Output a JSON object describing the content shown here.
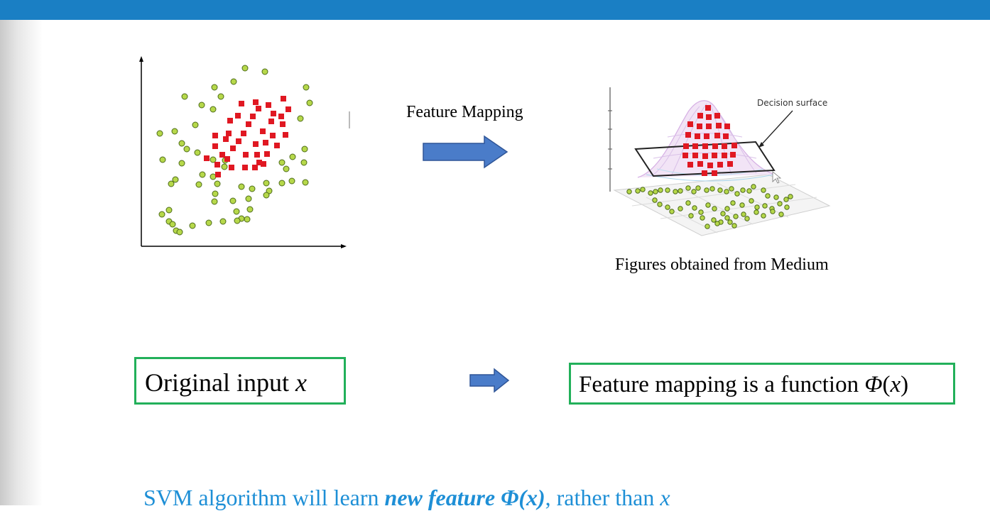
{
  "mapping_label": "Feature Mapping",
  "decision_surface_label": "Decision surface",
  "source_caption": "Figures obtained from Medium",
  "original_box": {
    "text": "Original input ",
    "var": "x"
  },
  "mapping_box": {
    "text": "Feature mapping is a function ",
    "func": "Φ",
    "open": "(",
    "var": "x",
    "close": ")"
  },
  "summary": {
    "pre": "SVM algorithm will learn ",
    "bold": "new feature Φ(x)",
    "post": ", rather than ",
    "var": "x"
  },
  "colors": {
    "header": "#1a7fc4",
    "arrow": "#4a7cc9",
    "box_border": "#22b05a",
    "summary_text": "#1e8fd6",
    "red_points": "#e01822",
    "green_points": "#b6d84a"
  }
}
